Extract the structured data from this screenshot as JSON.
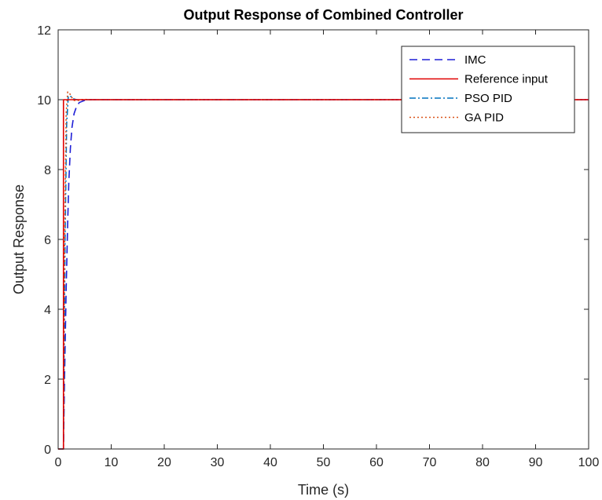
{
  "chart_data": {
    "type": "line",
    "title": "Output Response of Combined Controller",
    "xlabel": "Time (s)",
    "ylabel": "Output Response",
    "xlim": [
      0,
      100
    ],
    "ylim": [
      0,
      12
    ],
    "xticks": [
      0,
      10,
      20,
      30,
      40,
      50,
      60,
      70,
      80,
      90,
      100
    ],
    "yticks": [
      0,
      2,
      4,
      6,
      8,
      10,
      12
    ],
    "grid": false,
    "legend_position": "top-right",
    "series": [
      {
        "name": "IMC",
        "color": "#1f1fd6",
        "style": "dashed",
        "x": [
          0,
          1.0,
          1.2,
          1.5,
          1.8,
          2.0,
          2.3,
          2.6,
          3.0,
          3.5,
          4.0,
          5.0,
          6.0,
          8.0,
          100
        ],
        "y": [
          0,
          0,
          2.0,
          4.5,
          6.5,
          7.6,
          8.6,
          9.2,
          9.6,
          9.82,
          9.92,
          9.98,
          10.0,
          10.0,
          10.0
        ]
      },
      {
        "name": "Reference input",
        "color": "#e00000",
        "style": "solid",
        "x": [
          0,
          1,
          1,
          100
        ],
        "y": [
          0,
          0,
          10,
          10
        ]
      },
      {
        "name": "PSO PID",
        "color": "#0072bd",
        "style": "dashdot",
        "x": [
          0,
          1.0,
          1.3,
          1.6,
          1.9,
          2.2,
          2.6,
          3.0,
          3.5,
          4.0,
          5.0,
          6.0,
          100
        ],
        "y": [
          0,
          0,
          6.0,
          9.3,
          10.08,
          10.12,
          10.06,
          10.02,
          10.0,
          9.99,
          10.0,
          10.0,
          10.0
        ]
      },
      {
        "name": "GA PID",
        "color": "#d95319",
        "style": "dotted",
        "x": [
          0,
          1.0,
          1.2,
          1.5,
          1.8,
          2.1,
          2.5,
          3.0,
          3.6,
          4.2,
          5.0,
          6.0,
          100
        ],
        "y": [
          0,
          0,
          5.5,
          9.6,
          10.22,
          10.2,
          10.08,
          9.98,
          9.97,
          10.0,
          10.01,
          10.0,
          10.0
        ]
      }
    ]
  }
}
